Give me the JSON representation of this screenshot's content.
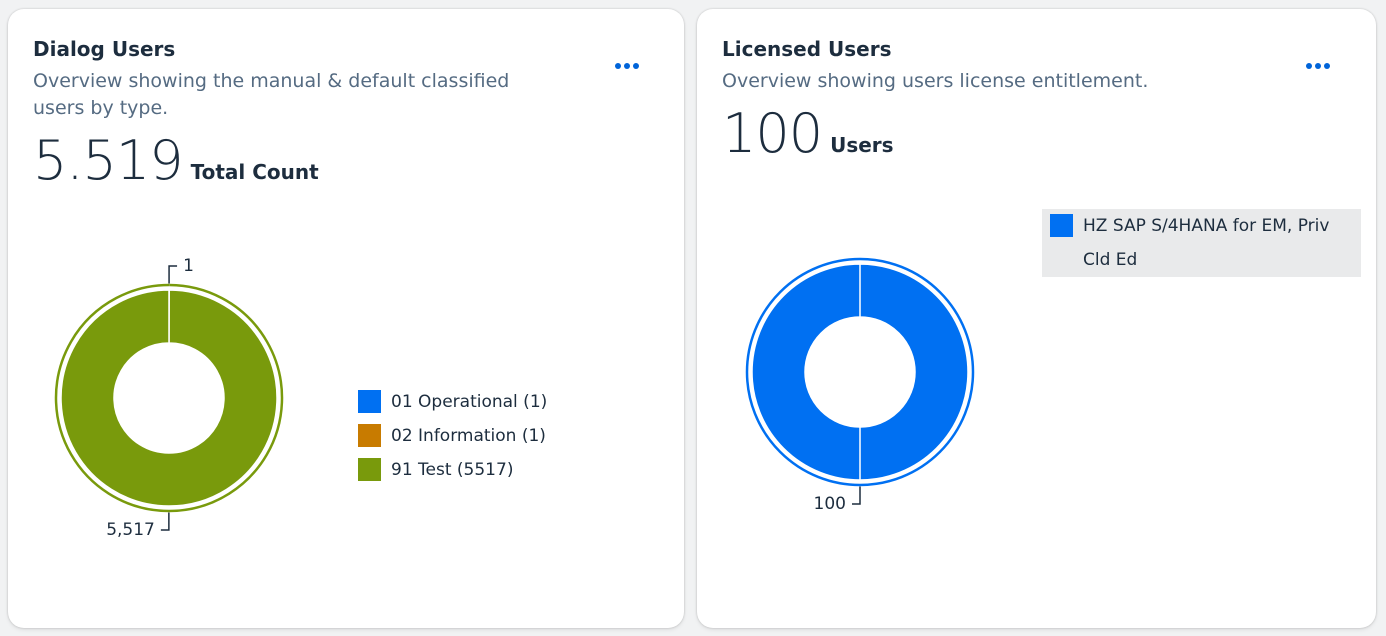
{
  "cards": [
    {
      "title": "Dialog Users",
      "subtitle": "Overview showing the manual & default classified users by type.",
      "kpi": "5.519",
      "kpi_unit": "Total Count",
      "chart_data": {
        "type": "donut",
        "categories": [
          "01 Operational (1)",
          "02 Information (1)",
          "91 Test (5517)"
        ],
        "values": [
          1,
          1,
          5517
        ],
        "value_labels": [
          "1",
          null,
          "5,517"
        ],
        "colors": [
          "#0070f2",
          "#c87b00",
          "#799a0c"
        ]
      }
    },
    {
      "title": "Licensed Users",
      "subtitle": "Overview showing users license entitlement.",
      "kpi": "100",
      "kpi_unit": "Users",
      "chart_data": {
        "type": "donut",
        "categories": [
          "HZ SAP S/4HANA for EM, Priv Cld Ed"
        ],
        "values": [
          100
        ],
        "value_labels": [
          "100"
        ],
        "colors": [
          "#0070f2"
        ]
      }
    }
  ]
}
